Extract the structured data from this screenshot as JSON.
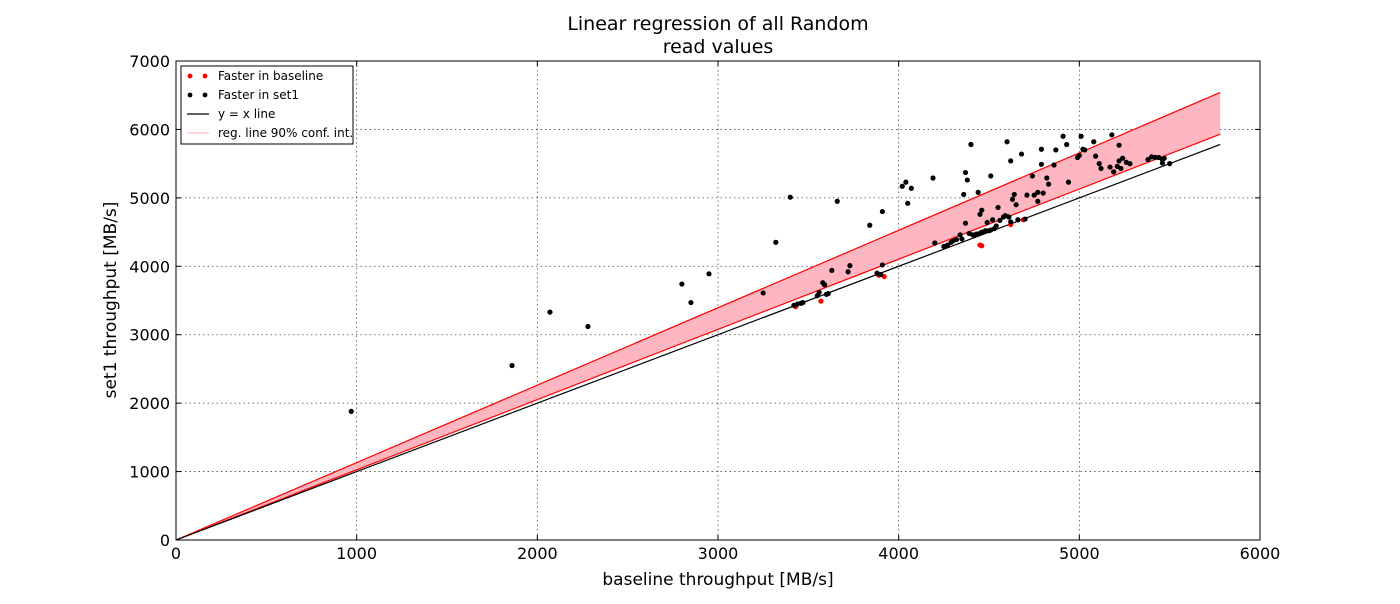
{
  "chart_data": {
    "type": "scatter",
    "title": [
      "Linear regression of all Random",
      "read values"
    ],
    "xlabel": "baseline throughput [MB/s]",
    "ylabel": "set1 throughput [MB/s]",
    "xlim": [
      0,
      6000
    ],
    "ylim": [
      0,
      7000
    ],
    "xticks": [
      "0",
      "1000",
      "2000",
      "3000",
      "4000",
      "5000",
      "6000"
    ],
    "yticks": [
      "0",
      "1000",
      "2000",
      "3000",
      "4000",
      "5000",
      "6000",
      "7000"
    ],
    "grid": true,
    "legend_position": "top-left",
    "colors": {
      "baseline_points": "#ff0000",
      "set1_points": "#000000",
      "identity_line": "#000000",
      "band_fill": "#ffb6c1",
      "band_edge": "#ff0000"
    },
    "legend": [
      {
        "label": "Faster in baseline"
      },
      {
        "label": "Faster in set1"
      },
      {
        "label": "y = x line"
      },
      {
        "label": "reg. line 90% conf. int."
      }
    ],
    "series": [
      {
        "name": "Faster in baseline",
        "points": [
          [
            3430,
            3410
          ],
          [
            3570,
            3490
          ],
          [
            3890,
            3870
          ],
          [
            3920,
            3850
          ],
          [
            4450,
            4310
          ],
          [
            4460,
            4300
          ],
          [
            4620,
            4610
          ],
          [
            4690,
            4680
          ]
        ]
      },
      {
        "name": "Faster in set1",
        "points": [
          [
            970,
            1880
          ],
          [
            1860,
            2550
          ],
          [
            2070,
            3330
          ],
          [
            2280,
            3120
          ],
          [
            2800,
            3740
          ],
          [
            2850,
            3470
          ],
          [
            2950,
            3890
          ],
          [
            3250,
            3610
          ],
          [
            3320,
            4350
          ],
          [
            3400,
            5010
          ],
          [
            3420,
            3430
          ],
          [
            3440,
            3450
          ],
          [
            3460,
            3460
          ],
          [
            3470,
            3470
          ],
          [
            3550,
            3570
          ],
          [
            3560,
            3620
          ],
          [
            3580,
            3760
          ],
          [
            3590,
            3730
          ],
          [
            3600,
            3590
          ],
          [
            3610,
            3600
          ],
          [
            3630,
            3940
          ],
          [
            3660,
            4950
          ],
          [
            3720,
            3920
          ],
          [
            3730,
            4010
          ],
          [
            3840,
            4600
          ],
          [
            3880,
            3900
          ],
          [
            3900,
            3880
          ],
          [
            3910,
            4020
          ],
          [
            3910,
            4800
          ],
          [
            4020,
            5170
          ],
          [
            4040,
            5230
          ],
          [
            4050,
            4920
          ],
          [
            4070,
            5140
          ],
          [
            4190,
            5290
          ],
          [
            4200,
            4340
          ],
          [
            4250,
            4290
          ],
          [
            4270,
            4310
          ],
          [
            4290,
            4350
          ],
          [
            4300,
            4370
          ],
          [
            4320,
            4390
          ],
          [
            4340,
            4460
          ],
          [
            4350,
            4400
          ],
          [
            4360,
            5050
          ],
          [
            4370,
            5370
          ],
          [
            4380,
            5260
          ],
          [
            4370,
            4630
          ],
          [
            4390,
            4480
          ],
          [
            4400,
            5780
          ],
          [
            4410,
            4460
          ],
          [
            4420,
            4450
          ],
          [
            4430,
            4470
          ],
          [
            4440,
            5080
          ],
          [
            4440,
            4470
          ],
          [
            4450,
            4480
          ],
          [
            4450,
            4760
          ],
          [
            4460,
            4820
          ],
          [
            4460,
            4500
          ],
          [
            4470,
            4500
          ],
          [
            4480,
            4520
          ],
          [
            4490,
            4640
          ],
          [
            4500,
            4520
          ],
          [
            4510,
            4530
          ],
          [
            4510,
            5320
          ],
          [
            4520,
            4680
          ],
          [
            4530,
            4550
          ],
          [
            4540,
            4590
          ],
          [
            4550,
            4860
          ],
          [
            4560,
            4670
          ],
          [
            4580,
            4720
          ],
          [
            4590,
            4740
          ],
          [
            4600,
            5820
          ],
          [
            4610,
            4720
          ],
          [
            4620,
            5540
          ],
          [
            4620,
            4650
          ],
          [
            4630,
            4980
          ],
          [
            4640,
            5050
          ],
          [
            4650,
            4900
          ],
          [
            4660,
            4680
          ],
          [
            4680,
            5640
          ],
          [
            4700,
            4690
          ],
          [
            4710,
            5040
          ],
          [
            4740,
            5320
          ],
          [
            4750,
            5040
          ],
          [
            4770,
            5080
          ],
          [
            4770,
            4950
          ],
          [
            4790,
            5490
          ],
          [
            4790,
            5710
          ],
          [
            4800,
            5070
          ],
          [
            4820,
            5290
          ],
          [
            4830,
            5200
          ],
          [
            4860,
            5480
          ],
          [
            4870,
            5700
          ],
          [
            4910,
            5900
          ],
          [
            4930,
            5780
          ],
          [
            4940,
            5230
          ],
          [
            4990,
            5590
          ],
          [
            5000,
            5620
          ],
          [
            5010,
            5900
          ],
          [
            5020,
            5710
          ],
          [
            5030,
            5700
          ],
          [
            5080,
            5820
          ],
          [
            5090,
            5610
          ],
          [
            5110,
            5500
          ],
          [
            5120,
            5430
          ],
          [
            5170,
            5450
          ],
          [
            5180,
            5920
          ],
          [
            5190,
            5380
          ],
          [
            5210,
            5460
          ],
          [
            5220,
            5540
          ],
          [
            5220,
            5770
          ],
          [
            5230,
            5430
          ],
          [
            5240,
            5580
          ],
          [
            5260,
            5520
          ],
          [
            5280,
            5500
          ],
          [
            5380,
            5560
          ],
          [
            5400,
            5600
          ],
          [
            5420,
            5590
          ],
          [
            5440,
            5590
          ],
          [
            5460,
            5560
          ],
          [
            5460,
            5510
          ],
          [
            5470,
            5580
          ],
          [
            5500,
            5500
          ]
        ]
      }
    ],
    "identity_line": {
      "x": [
        0,
        5780
      ],
      "y": [
        0,
        5780
      ]
    },
    "confidence_band": {
      "x": [
        0,
        5780
      ],
      "lower": [
        0,
        5930
      ],
      "upper": [
        0,
        6540
      ]
    }
  }
}
